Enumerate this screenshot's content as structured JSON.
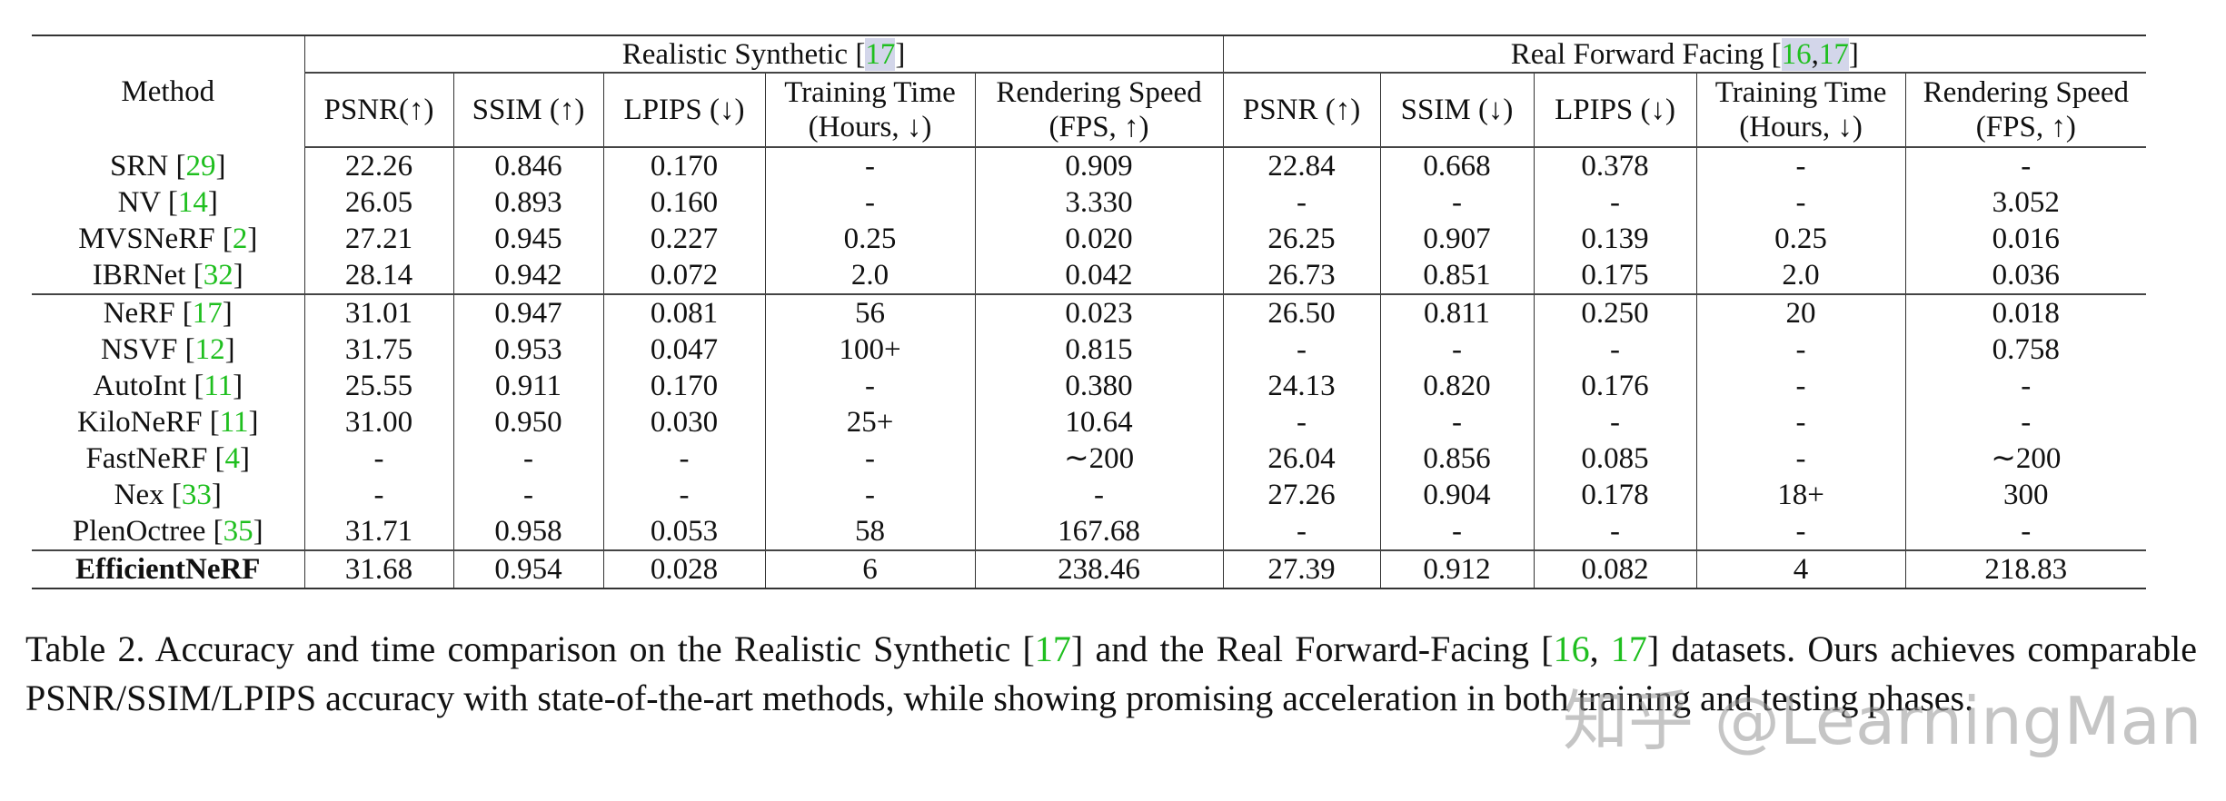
{
  "table": {
    "method_header": "Method",
    "groups": [
      {
        "label": "Realistic Synthetic ",
        "refs": [
          "17"
        ]
      },
      {
        "label": "Real Forward Facing ",
        "refs": [
          "16",
          "17"
        ]
      }
    ],
    "columns": [
      [
        "PSNR(↑)",
        ""
      ],
      [
        "SSIM (↑)",
        ""
      ],
      [
        "LPIPS (↓)",
        ""
      ],
      [
        "Training Time",
        "(Hours, ↓)"
      ],
      [
        "Rendering Speed",
        "(FPS, ↑)"
      ],
      [
        "PSNR (↑)",
        ""
      ],
      [
        "SSIM (↓)",
        ""
      ],
      [
        "LPIPS (↓)",
        ""
      ],
      [
        "Training Time",
        "(Hours, ↓)"
      ],
      [
        "Rendering Speed",
        "(FPS, ↑)"
      ]
    ],
    "rows": [
      {
        "method": "SRN ",
        "ref": "29",
        "cells": [
          [
            "22.26",
            0
          ],
          [
            "0.846",
            0
          ],
          [
            "0.170",
            0
          ],
          [
            "-",
            0
          ],
          [
            "0.909",
            0
          ],
          [
            "22.84",
            0
          ],
          [
            "0.668",
            0
          ],
          [
            "0.378",
            0
          ],
          [
            "-",
            0
          ],
          [
            "-",
            0
          ]
        ]
      },
      {
        "method": "NV ",
        "ref": "14",
        "cells": [
          [
            "26.05",
            0
          ],
          [
            "0.893",
            0
          ],
          [
            "0.160",
            0
          ],
          [
            "-",
            0
          ],
          [
            "3.330",
            0
          ],
          [
            "-",
            0
          ],
          [
            "-",
            0
          ],
          [
            "-",
            0
          ],
          [
            "-",
            0
          ],
          [
            "3.052",
            0
          ]
        ]
      },
      {
        "method": "MVSNeRF ",
        "ref": "2",
        "cells": [
          [
            "27.21",
            0
          ],
          [
            "0.945",
            0
          ],
          [
            "0.227",
            0
          ],
          [
            "0.25",
            1
          ],
          [
            "0.020",
            0
          ],
          [
            "26.25",
            0
          ],
          [
            "0.907",
            1
          ],
          [
            "0.139",
            0
          ],
          [
            "0.25",
            0
          ],
          [
            "0.016",
            0
          ]
        ]
      },
      {
        "method": "IBRNet ",
        "ref": "32",
        "cells": [
          [
            "28.14",
            0
          ],
          [
            "0.942",
            0
          ],
          [
            "0.072",
            0
          ],
          [
            "2.0",
            1
          ],
          [
            "0.042",
            0
          ],
          [
            "26.73",
            0
          ],
          [
            "0.851",
            0
          ],
          [
            "0.175",
            0
          ],
          [
            "2.0",
            1
          ],
          [
            "0.036",
            0
          ]
        ]
      },
      {
        "method": "NeRF ",
        "ref": "17",
        "sep": true,
        "cells": [
          [
            "31.01",
            0
          ],
          [
            "0.947",
            0
          ],
          [
            "0.081",
            0
          ],
          [
            "56",
            0
          ],
          [
            "0.023",
            0
          ],
          [
            "26.50",
            0
          ],
          [
            "0.811",
            0
          ],
          [
            "0.250",
            0
          ],
          [
            "20",
            0
          ],
          [
            "0.018",
            0
          ]
        ]
      },
      {
        "method": "NSVF ",
        "ref": "12",
        "cells": [
          [
            "31.75",
            1
          ],
          [
            "0.953",
            0
          ],
          [
            "0.047",
            0
          ],
          [
            "100+",
            0
          ],
          [
            "0.815",
            0
          ],
          [
            "-",
            0
          ],
          [
            "-",
            0
          ],
          [
            "-",
            0
          ],
          [
            "-",
            0
          ],
          [
            "0.758",
            0
          ]
        ]
      },
      {
        "method": "AutoInt ",
        "ref": "11",
        "cells": [
          [
            "25.55",
            0
          ],
          [
            "0.911",
            0
          ],
          [
            "0.170",
            0
          ],
          [
            "-",
            0
          ],
          [
            "0.380",
            0
          ],
          [
            "24.13",
            0
          ],
          [
            "0.820",
            0
          ],
          [
            "0.176",
            0
          ],
          [
            "-",
            0
          ],
          [
            "-",
            0
          ]
        ]
      },
      {
        "method": "KiloNeRF ",
        "ref": "11",
        "cells": [
          [
            "31.00",
            0
          ],
          [
            "0.950",
            0
          ],
          [
            "0.030",
            1
          ],
          [
            "25+",
            0
          ],
          [
            "10.64",
            0
          ],
          [
            "-",
            0
          ],
          [
            "-",
            0
          ],
          [
            "-",
            0
          ],
          [
            "-",
            0
          ],
          [
            "-",
            0
          ]
        ]
      },
      {
        "method": "FastNeRF ",
        "ref": "4",
        "cells": [
          [
            "-",
            0
          ],
          [
            "-",
            0
          ],
          [
            "-",
            0
          ],
          [
            "-",
            0
          ],
          [
            "∼200",
            0
          ],
          [
            "26.04",
            0
          ],
          [
            "0.856",
            0
          ],
          [
            "0.085",
            1
          ],
          [
            "-",
            0
          ],
          [
            "∼200",
            0
          ]
        ]
      },
      {
        "method": "Nex ",
        "ref": "33",
        "cells": [
          [
            "-",
            0
          ],
          [
            "-",
            0
          ],
          [
            "-",
            0
          ],
          [
            "-",
            0
          ],
          [
            "-",
            0
          ],
          [
            "27.26",
            1
          ],
          [
            "0.904",
            0
          ],
          [
            "0.178",
            0
          ],
          [
            "18+",
            0
          ],
          [
            "300",
            1
          ]
        ]
      },
      {
        "method": "PlenOctree ",
        "ref": "35",
        "cells": [
          [
            "31.71",
            1
          ],
          [
            "0.958",
            1
          ],
          [
            "0.053",
            0
          ],
          [
            "58",
            0
          ],
          [
            "167.68",
            1
          ],
          [
            "-",
            0
          ],
          [
            "-",
            0
          ],
          [
            "-",
            0
          ],
          [
            "-",
            0
          ],
          [
            "-",
            0
          ]
        ]
      },
      {
        "method": "EfficientNeRF",
        "ref": "",
        "bold": true,
        "last": true,
        "cells": [
          [
            "31.68",
            0
          ],
          [
            "0.954",
            1
          ],
          [
            "0.028",
            1
          ],
          [
            "6",
            0
          ],
          [
            "238.46",
            1
          ],
          [
            "27.39",
            1
          ],
          [
            "0.912",
            1
          ],
          [
            "0.082",
            1
          ],
          [
            "4",
            1
          ],
          [
            "218.83",
            1
          ]
        ]
      }
    ]
  },
  "caption": [
    {
      "t": "Table 2.  Accuracy and time comparison on the Realistic Synthetic [",
      "ref": false
    },
    {
      "t": "17",
      "ref": true
    },
    {
      "t": "] and the Real Forward-Facing [",
      "ref": false
    },
    {
      "t": "16",
      "ref": true
    },
    {
      "t": ", ",
      "ref": false
    },
    {
      "t": "17",
      "ref": true
    },
    {
      "t": "] datasets.  Ours achieves comparable PSNR/SSIM/LPIPS accuracy with state-of-the-art methods, while showing promising acceleration in both training and testing phases.",
      "ref": false
    }
  ],
  "watermark": "知乎 @LearningMan",
  "colors": {
    "citation": "#1fbf1f",
    "citation_highlight": "#d3d6ea",
    "rule": "#333333"
  }
}
